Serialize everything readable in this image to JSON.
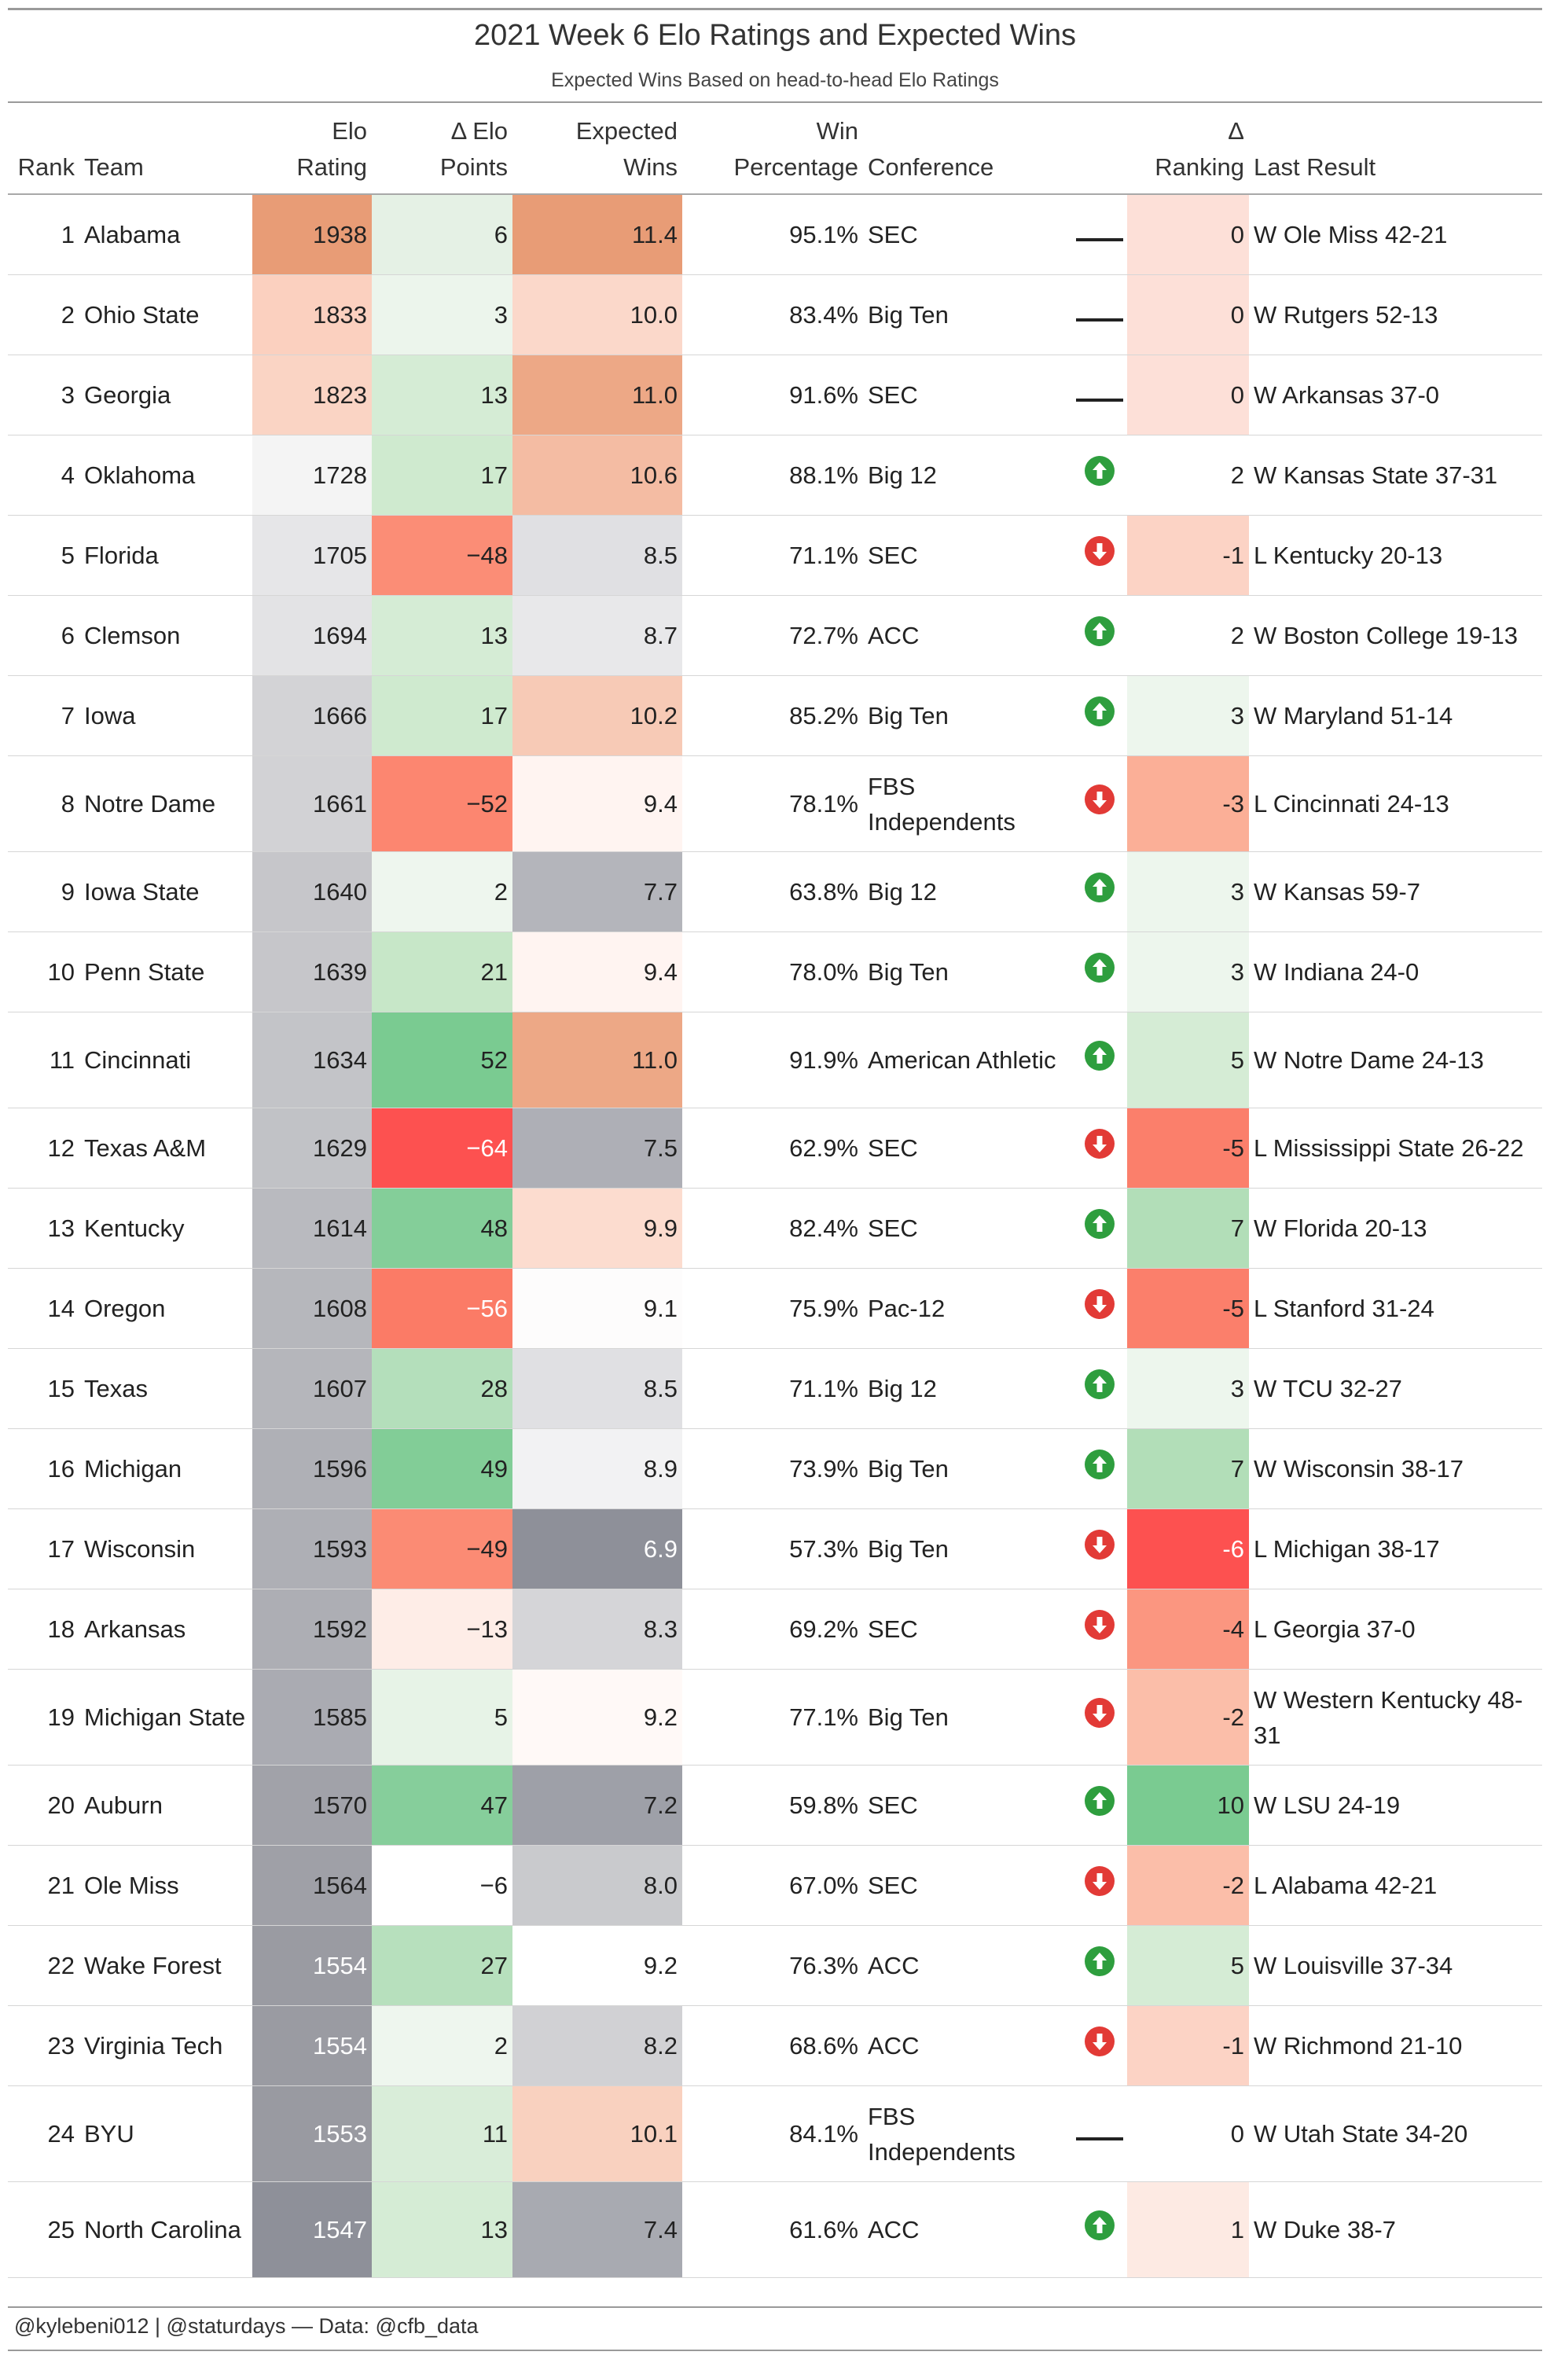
{
  "title": "2021 Week 6 Elo Ratings and Expected Wins",
  "subtitle": "Expected Wins Based on head-to-head Elo Ratings",
  "footer": "@kylebeni012 | @staturdays — Data: @cfb_data",
  "headers": {
    "rank": "Rank",
    "team": "Team",
    "elo": [
      "Elo",
      "Rating"
    ],
    "delta_elo": [
      "Δ Elo",
      "Points"
    ],
    "expected": [
      "Expected",
      "Wins"
    ],
    "winpct": [
      "Win",
      "Percentage"
    ],
    "conference": "Conference",
    "delta_rank": [
      "Δ",
      "Ranking"
    ],
    "last": "Last Result"
  },
  "colors": {
    "up_arrow": "#2e9e3e",
    "down_arrow": "#e23a36",
    "no_change": "#222222"
  },
  "rows": [
    {
      "rank": "1",
      "team": "Alabama",
      "elo": "1938",
      "delta_elo": "6",
      "expected": "11.4",
      "winpct": "95.1%",
      "conference": "SEC",
      "trend": "flat",
      "delta_rank": "0",
      "last": "W Ole Miss 42-21",
      "c_elo": "#e89c76",
      "c_delo": "#e5f1e5",
      "c_exp": "#e89c76",
      "c_rank": "#fde0d8",
      "lines": 1
    },
    {
      "rank": "2",
      "team": "Ohio State",
      "elo": "1833",
      "delta_elo": "3",
      "expected": "10.0",
      "winpct": "83.4%",
      "conference": "Big Ten",
      "trend": "flat",
      "delta_rank": "0",
      "last": "W Rutgers 52-13",
      "c_elo": "#fbd0bf",
      "c_delo": "#ecf5ec",
      "c_exp": "#fbd8ca",
      "c_rank": "#fde0d8",
      "lines": 1
    },
    {
      "rank": "3",
      "team": "Georgia",
      "elo": "1823",
      "delta_elo": "13",
      "expected": "11.0",
      "winpct": "91.6%",
      "conference": "SEC",
      "trend": "flat",
      "delta_rank": "0",
      "last": "W Arkansas 37-0",
      "c_elo": "#fad4c4",
      "c_delo": "#d5ecd5",
      "c_exp": "#eda886",
      "c_rank": "#fde0d8",
      "lines": 1
    },
    {
      "rank": "4",
      "team": "Oklahoma",
      "elo": "1728",
      "delta_elo": "17",
      "expected": "10.6",
      "winpct": "88.1%",
      "conference": "Big 12",
      "trend": "up",
      "delta_rank": "2",
      "last": "W Kansas State 37-31",
      "c_elo": "#f4f4f4",
      "c_delo": "#cfeacf",
      "c_exp": "#f4bca3",
      "c_rank": "#ffffff",
      "lines": 1
    },
    {
      "rank": "5",
      "team": "Florida",
      "elo": "1705",
      "delta_elo": "−48",
      "expected": "8.5",
      "winpct": "71.1%",
      "conference": "SEC",
      "trend": "down",
      "delta_rank": "-1",
      "last": "L Kentucky 20-13",
      "c_elo": "#e6e6e8",
      "c_delo": "#fb8d76",
      "c_exp": "#e0e0e3",
      "c_rank": "#fcd3c5",
      "lines": 1
    },
    {
      "rank": "6",
      "team": "Clemson",
      "elo": "1694",
      "delta_elo": "13",
      "expected": "8.7",
      "winpct": "72.7%",
      "conference": "ACC",
      "trend": "up",
      "delta_rank": "2",
      "last": "W Boston College 19-13",
      "c_elo": "#e3e3e5",
      "c_delo": "#d5ecd5",
      "c_exp": "#e8e8ea",
      "c_rank": "#ffffff",
      "lines": 1
    },
    {
      "rank": "7",
      "team": "Iowa",
      "elo": "1666",
      "delta_elo": "17",
      "expected": "10.2",
      "winpct": "85.2%",
      "conference": "Big Ten",
      "trend": "up",
      "delta_rank": "3",
      "last": "W Maryland 51-14",
      "c_elo": "#d3d3d6",
      "c_delo": "#cfeacf",
      "c_exp": "#f7cab6",
      "c_rank": "#edf6ed",
      "lines": 1
    },
    {
      "rank": "8",
      "team": "Notre Dame",
      "elo": "1661",
      "delta_elo": "−52",
      "expected": "9.4",
      "winpct": "78.1%",
      "conference": "FBS Independents",
      "trend": "down",
      "delta_rank": "-3",
      "last": "L Cincinnati 24-13",
      "c_elo": "#d2d2d5",
      "c_delo": "#fc8670",
      "c_exp": "#fff4f1",
      "c_rank": "#fbaf97",
      "lines": 2
    },
    {
      "rank": "9",
      "team": "Iowa State",
      "elo": "1640",
      "delta_elo": "2",
      "expected": "7.7",
      "winpct": "63.8%",
      "conference": "Big 12",
      "trend": "up",
      "delta_rank": "3",
      "last": "W Kansas 59-7",
      "c_elo": "#c6c6ca",
      "c_delo": "#eef6ee",
      "c_exp": "#b4b5bb",
      "c_rank": "#edf6ed",
      "lines": 1
    },
    {
      "rank": "10",
      "team": "Penn State",
      "elo": "1639",
      "delta_elo": "21",
      "expected": "9.4",
      "winpct": "78.0%",
      "conference": "Big Ten",
      "trend": "up",
      "delta_rank": "3",
      "last": "W Indiana 24-0",
      "c_elo": "#c6c6ca",
      "c_delo": "#c7e7c8",
      "c_exp": "#fff4f1",
      "c_rank": "#edf6ed",
      "lines": 1
    },
    {
      "rank": "11",
      "team": "Cincinnati",
      "elo": "1634",
      "delta_elo": "52",
      "expected": "11.0",
      "winpct": "91.9%",
      "conference": "American Athletic",
      "trend": "up",
      "delta_rank": "5",
      "last": "W Notre Dame 24-13",
      "c_elo": "#c3c4c8",
      "c_delo": "#7acb91",
      "c_exp": "#eda886",
      "c_rank": "#d5ecd5",
      "lines": 2
    },
    {
      "rank": "12",
      "team": "Texas A&M",
      "elo": "1629",
      "delta_elo": "−64",
      "expected": "7.5",
      "winpct": "62.9%",
      "conference": "SEC",
      "trend": "down",
      "delta_rank": "-5",
      "last": "L Mississippi State 26-22",
      "c_elo": "#c1c2c6",
      "c_delo": "#fd5150",
      "c_exp": "#aeafb6",
      "c_rank": "#fb7f6b",
      "lines": 1
    },
    {
      "rank": "13",
      "team": "Kentucky",
      "elo": "1614",
      "delta_elo": "48",
      "expected": "9.9",
      "winpct": "82.4%",
      "conference": "SEC",
      "trend": "up",
      "delta_rank": "7",
      "last": "W Florida 20-13",
      "c_elo": "#b9babf",
      "c_delo": "#84ce99",
      "c_exp": "#fcdccf",
      "c_rank": "#b2deb8",
      "lines": 1
    },
    {
      "rank": "14",
      "team": "Oregon",
      "elo": "1608",
      "delta_elo": "−56",
      "expected": "9.1",
      "winpct": "75.9%",
      "conference": "Pac-12",
      "trend": "down",
      "delta_rank": "-5",
      "last": "L Stanford 31-24",
      "c_elo": "#b6b7bc",
      "c_delo": "#fb7b66",
      "c_exp": "#fdfcfc",
      "c_rank": "#fb7f6b",
      "lines": 1
    },
    {
      "rank": "15",
      "team": "Texas",
      "elo": "1607",
      "delta_elo": "28",
      "expected": "8.5",
      "winpct": "71.1%",
      "conference": "Big 12",
      "trend": "up",
      "delta_rank": "3",
      "last": "W TCU 32-27",
      "c_elo": "#b5b6bb",
      "c_delo": "#b4dfbb",
      "c_exp": "#e0e0e3",
      "c_rank": "#edf6ed",
      "lines": 1
    },
    {
      "rank": "16",
      "team": "Michigan",
      "elo": "1596",
      "delta_elo": "49",
      "expected": "8.9",
      "winpct": "73.9%",
      "conference": "Big Ten",
      "trend": "up",
      "delta_rank": "7",
      "last": "W Wisconsin 38-17",
      "c_elo": "#afb0b6",
      "c_delo": "#82cd97",
      "c_exp": "#f2f2f3",
      "c_rank": "#b2deb8",
      "lines": 1
    },
    {
      "rank": "17",
      "team": "Wisconsin",
      "elo": "1593",
      "delta_elo": "−49",
      "expected": "6.9",
      "winpct": "57.3%",
      "conference": "Big Ten",
      "trend": "down",
      "delta_rank": "-6",
      "last": "L Michigan 38-17",
      "c_elo": "#aeafb5",
      "c_delo": "#fb8b74",
      "c_exp": "#8e9099",
      "c_rank": "#fd5150",
      "lines": 1
    },
    {
      "rank": "18",
      "team": "Arkansas",
      "elo": "1592",
      "delta_elo": "−13",
      "expected": "8.3",
      "winpct": "69.2%",
      "conference": "SEC",
      "trend": "down",
      "delta_rank": "-4",
      "last": "L Georgia 37-0",
      "c_elo": "#adaeb4",
      "c_delo": "#feede7",
      "c_exp": "#d5d5d8",
      "c_rank": "#fb9680",
      "lines": 1
    },
    {
      "rank": "19",
      "team": "Michigan State",
      "elo": "1585",
      "delta_elo": "5",
      "expected": "9.2",
      "winpct": "77.1%",
      "conference": "Big Ten",
      "trend": "down",
      "delta_rank": "-2",
      "last": "W Western Kentucky 48-31",
      "c_elo": "#aaabb2",
      "c_delo": "#e7f3e7",
      "c_exp": "#fff9f7",
      "c_rank": "#fbbea9",
      "lines": 2
    },
    {
      "rank": "20",
      "team": "Auburn",
      "elo": "1570",
      "delta_elo": "47",
      "expected": "7.2",
      "winpct": "59.8%",
      "conference": "SEC",
      "trend": "up",
      "delta_rank": "10",
      "last": "W LSU 24-19",
      "c_elo": "#a1a2a9",
      "c_delo": "#86ce9b",
      "c_exp": "#9ea0a8",
      "c_rank": "#7acb91",
      "lines": 1
    },
    {
      "rank": "21",
      "team": "Ole Miss",
      "elo": "1564",
      "delta_elo": "−6",
      "expected": "8.0",
      "winpct": "67.0%",
      "conference": "SEC",
      "trend": "down",
      "delta_rank": "-2",
      "last": "L Alabama 42-21",
      "c_elo": "#9fa0a7",
      "c_delo": "#ffffff",
      "c_exp": "#c9cacd",
      "c_rank": "#fbbea9",
      "lines": 1
    },
    {
      "rank": "22",
      "team": "Wake Forest",
      "elo": "1554",
      "delta_elo": "27",
      "expected": "9.2",
      "winpct": "76.3%",
      "conference": "ACC",
      "trend": "up",
      "delta_rank": "5",
      "last": "W Louisville 37-34",
      "c_elo": "#9a9ba2",
      "c_delo": "#b7e0bd",
      "c_exp": "#ffffff",
      "c_rank": "#d5ecd5",
      "lines": 1
    },
    {
      "rank": "23",
      "team": "Virginia Tech",
      "elo": "1554",
      "delta_elo": "2",
      "expected": "8.2",
      "winpct": "68.6%",
      "conference": "ACC",
      "trend": "down",
      "delta_rank": "-1",
      "last": "W Richmond 21-10",
      "c_elo": "#9a9ba2",
      "c_delo": "#eef6ee",
      "c_exp": "#d1d1d4",
      "c_rank": "#fcd3c5",
      "lines": 1
    },
    {
      "rank": "24",
      "team": "BYU",
      "elo": "1553",
      "delta_elo": "11",
      "expected": "10.1",
      "winpct": "84.1%",
      "conference": "FBS Independents",
      "trend": "flat",
      "delta_rank": "0",
      "last": "W Utah State 34-20",
      "c_elo": "#999aa1",
      "c_delo": "#d9edd9",
      "c_exp": "#f9d1bf",
      "c_rank": "#ffffff",
      "lines": 2
    },
    {
      "rank": "25",
      "team": "North Carolina",
      "elo": "1547",
      "delta_elo": "13",
      "expected": "7.4",
      "winpct": "61.6%",
      "conference": "ACC",
      "trend": "up",
      "delta_rank": "1",
      "last": "W Duke 38-7",
      "c_elo": "#8e9099",
      "c_delo": "#d5ecd5",
      "c_exp": "#a8aab1",
      "c_rank": "#fdeae3",
      "lines": 2
    }
  ]
}
